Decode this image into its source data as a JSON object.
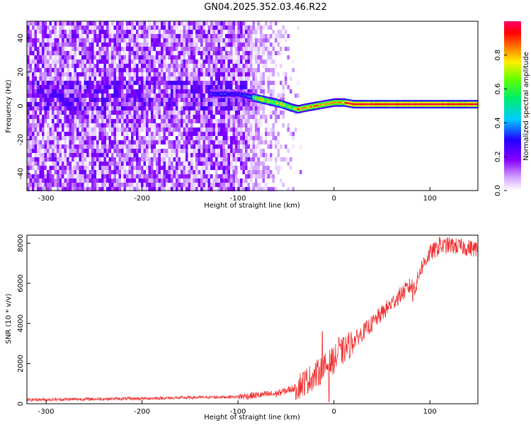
{
  "figure": {
    "title": "GN04.2025.352.03.46.R22"
  },
  "chart_data": [
    {
      "type": "heatmap",
      "xlabel": "Height of straight line (km)",
      "ylabel": "Frequency (Hz)",
      "xlim": [
        -320,
        150
      ],
      "ylim": [
        -50,
        50
      ],
      "xticks": [
        -300,
        -200,
        -100,
        0,
        100
      ],
      "yticks": [
        -40,
        -20,
        0,
        20,
        40
      ],
      "grid": false,
      "colorbar": {
        "label": "Normalized spectral amplitude",
        "range": [
          0,
          1
        ],
        "ticks": [
          0.0,
          0.2,
          0.4,
          0.6,
          0.8
        ],
        "colormap": "rainbow (white-violet-blue-cyan-green-yellow-red-magenta)"
      },
      "ridge": {
        "description": "dominant frequency of the signal vs height",
        "points": [
          [
            -100,
            7
          ],
          [
            -85,
            5
          ],
          [
            -70,
            3
          ],
          [
            -55,
            1
          ],
          [
            -45,
            -1
          ],
          [
            -38,
            -2
          ],
          [
            -30,
            -1
          ],
          [
            -20,
            0
          ],
          [
            -10,
            1
          ],
          [
            0,
            2
          ],
          [
            10,
            2
          ],
          [
            20,
            1
          ],
          [
            40,
            1
          ],
          [
            80,
            1
          ],
          [
            150,
            1
          ]
        ],
        "amplitude_high_from_km": -85
      },
      "noise_region": {
        "x_range": [
          -320,
          -90
        ],
        "freq_range": [
          -50,
          50
        ],
        "fade_out_km": [
          -90,
          -35
        ]
      }
    },
    {
      "type": "line",
      "xlabel": "Height of straight line (km)",
      "ylabel": "SNR (10 * v/v)",
      "xlim": [
        -320,
        150
      ],
      "ylim": [
        0,
        8400
      ],
      "xticks": [
        -300,
        -200,
        -100,
        0,
        100
      ],
      "yticks": [
        0,
        2000,
        4000,
        6000,
        8000
      ],
      "grid": false,
      "series": [
        {
          "color": "#f03030",
          "trend": [
            [
              -320,
              200
            ],
            [
              -200,
              260
            ],
            [
              -100,
              350
            ],
            [
              -60,
              500
            ],
            [
              -40,
              800
            ],
            [
              -20,
              1400
            ],
            [
              0,
              2200
            ],
            [
              20,
              3100
            ],
            [
              40,
              4000
            ],
            [
              60,
              5000
            ],
            [
              80,
              5900
            ],
            [
              85,
              5800
            ],
            [
              90,
              6700
            ],
            [
              100,
              7500
            ],
            [
              110,
              7800
            ],
            [
              120,
              7900
            ],
            [
              150,
              7700
            ]
          ],
          "spikes": [
            [
              -12,
              3600
            ],
            [
              5,
              3300
            ],
            [
              -5,
              100
            ],
            [
              82,
              5100
            ],
            [
              110,
              8300
            ]
          ]
        }
      ]
    }
  ]
}
